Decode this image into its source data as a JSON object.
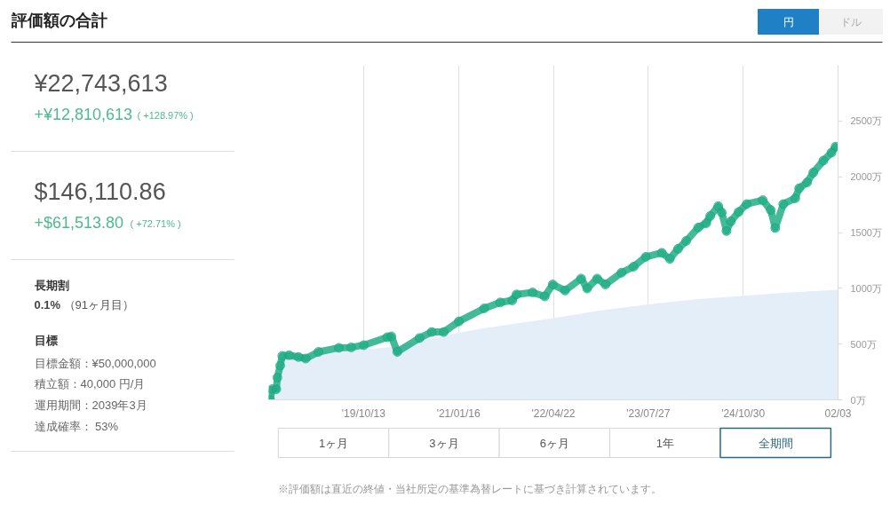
{
  "chart_data": [
    {
      "type": "other",
      "title": "評価額の合計",
      "annotations": [
        "¥22,743,613",
        "+¥12,810,613",
        "( +128.97% )",
        "$146,110.86",
        "+$61,513.80",
        "( +72.71% )",
        "長期割",
        "0.1%",
        "（91ヶ月目）",
        "目標",
        "目標金額：¥50,000,000",
        "積立額：40,000 円/月",
        "運用期間：2039年3月",
        "達成確率： 53%"
      ]
    },
    {
      "type": "line",
      "annotations": [
        "円",
        "ドル",
        "1ヶ月",
        "3ヶ月",
        "6ヶ月",
        "1年",
        "全期間",
        "※評価額は直近の終値・当社所定の基準為替レートに基づき計算されています。"
      ],
      "xlim": [
        "2018-07-09",
        "2026-02-03"
      ],
      "xticks": [
        {
          "value": "2019-10-13",
          "label": "'19/10/13"
        },
        {
          "value": "2021-01-16",
          "label": "'21/01/16"
        },
        {
          "value": "2022-04-22",
          "label": "'22/04/22"
        },
        {
          "value": "2023-07-27",
          "label": "'23/07/27"
        },
        {
          "value": "2024-10-30",
          "label": "'24/10/30"
        },
        {
          "value": "2026-02-03",
          "label": "02/03"
        }
      ],
      "ylim": [
        0,
        3000
      ],
      "yticks": [
        {
          "value": 0,
          "label": "0万"
        },
        {
          "value": 500,
          "label": "500万"
        },
        {
          "value": 1000,
          "label": "1000万"
        },
        {
          "value": 1500,
          "label": "1500万"
        },
        {
          "value": 2000,
          "label": "2000万"
        },
        {
          "value": 2500,
          "label": "2500万"
        }
      ],
      "grid": "x",
      "series": [
        {
          "type": "area",
          "color": "#e3eef9",
          "x": [
            "2018-07-09",
            "2018-07-20",
            "2018-08-15",
            "2018-09-13",
            "2019-03-01",
            "2019-10-13",
            "2020-03-25",
            "2020-07-11",
            "2021-01-16",
            "2021-05-21",
            "2022-04-22",
            "2022-12-01",
            "2023-07-27",
            "2024-03-01",
            "2024-10-30",
            "2025-06-15",
            "2026-02-03"
          ],
          "values": [
            0,
            95,
            95,
            390,
            410,
            450,
            480,
            530,
            600,
            643,
            732,
            800,
            856,
            900,
            934,
            962,
            987
          ]
        },
        {
          "type": "line",
          "color": "#16a97f",
          "marker": "circle",
          "x": [
            "2018-07-16",
            "2018-07-26",
            "2018-08-15",
            "2018-08-20",
            "2018-09-03",
            "2018-09-13",
            "2018-10-16",
            "2018-12-01",
            "2019-01-05",
            "2019-03-08",
            "2019-06-15",
            "2019-08-14",
            "2019-10-14",
            "2020-02-05",
            "2020-02-25",
            "2020-03-25",
            "2020-07-11",
            "2020-09-08",
            "2020-11-05",
            "2021-01-18",
            "2021-05-21",
            "2021-08-07",
            "2021-10-04",
            "2021-10-25",
            "2022-01-11",
            "2022-03-11",
            "2022-04-19",
            "2022-06-18",
            "2022-09-04",
            "2022-10-03",
            "2022-11-21",
            "2022-12-31",
            "2023-03-19",
            "2023-05-17",
            "2023-07-15",
            "2023-10-01",
            "2023-11-09",
            "2023-12-19",
            "2024-01-27",
            "2024-03-26",
            "2024-05-04",
            "2024-05-23",
            "2024-07-01",
            "2024-07-18",
            "2024-08-10",
            "2024-08-31",
            "2024-10-08",
            "2024-11-16",
            "2025-02-02",
            "2025-03-13",
            "2025-04-04",
            "2025-05-13",
            "2025-07-10",
            "2025-07-29",
            "2025-09-06",
            "2025-10-06",
            "2025-11-24",
            "2026-01-02",
            "2026-01-22"
          ],
          "values": [
            0,
            95,
            95,
            199,
            307,
            394,
            400,
            384,
            370,
            430,
            466,
            470,
            490,
            561,
            569,
            430,
            554,
            608,
            608,
            703,
            820,
            873,
            891,
            945,
            963,
            927,
            1034,
            980,
            1087,
            998,
            1087,
            1034,
            1140,
            1194,
            1282,
            1318,
            1264,
            1354,
            1424,
            1545,
            1584,
            1648,
            1737,
            1680,
            1513,
            1600,
            1684,
            1755,
            1790,
            1702,
            1540,
            1755,
            1807,
            1897,
            1950,
            2038,
            2145,
            2216,
            2270
          ]
        }
      ]
    }
  ]
}
